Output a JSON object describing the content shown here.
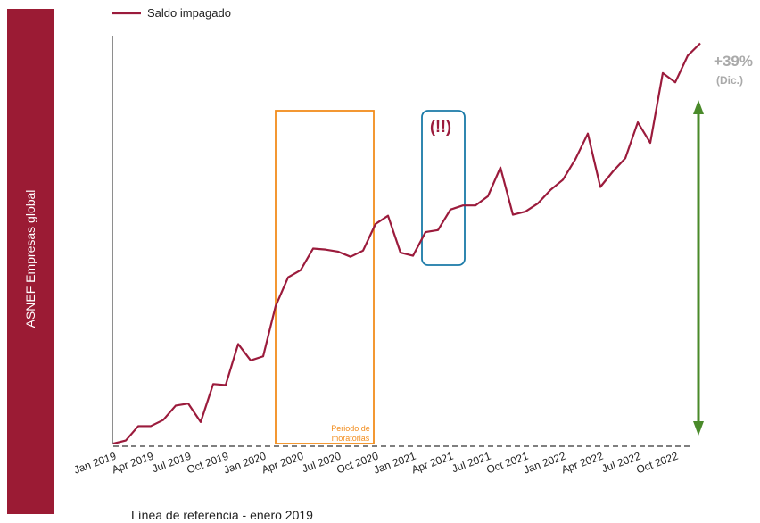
{
  "chart_data": {
    "type": "line",
    "legend_position": "top-left",
    "side_label": "ASNEF Empresas global",
    "categories": [
      "Jan 2019",
      null,
      null,
      "Apr 2019",
      null,
      null,
      "Jul 2019",
      null,
      null,
      "Oct 2019",
      null,
      null,
      "Jan 2020",
      null,
      null,
      "Apr 2020",
      null,
      null,
      "Jul 2020",
      null,
      null,
      "Oct 2020",
      null,
      null,
      "Jan 2021",
      null,
      null,
      "Apr 2021",
      null,
      null,
      "Jul 2021",
      null,
      null,
      "Oct 2021",
      null,
      null,
      "Jan 2022",
      null,
      null,
      "Apr 2022",
      null,
      null,
      "Jul 2022",
      null,
      null,
      "Oct 2022",
      null,
      null
    ],
    "series": [
      {
        "name": "Saldo impagado",
        "color": "#9b1b3c",
        "values": [
          100,
          100.3,
          101.7,
          101.7,
          102.3,
          103.7,
          103.9,
          102.1,
          105.8,
          105.7,
          109.7,
          108.1,
          108.5,
          113.4,
          116.2,
          116.9,
          119,
          118.9,
          118.7,
          118.2,
          118.8,
          121.4,
          122.2,
          118.6,
          118.3,
          120.6,
          120.8,
          122.8,
          123.2,
          123.2,
          124.1,
          126.9,
          122.3,
          122.6,
          123.4,
          124.7,
          125.7,
          127.7,
          130.2,
          125,
          126.5,
          127.8,
          131.3,
          129.3,
          136.1,
          135.2,
          137.8,
          139
        ]
      }
    ],
    "ylim": [
      100,
      140
    ],
    "annotations": {
      "change": "+39%",
      "change_note": "(Dic.)",
      "alert": "(!!)",
      "moratorium": [
        "Periodo de",
        "moratorias"
      ],
      "reference": "Línea de referencia - enero 2019"
    }
  }
}
